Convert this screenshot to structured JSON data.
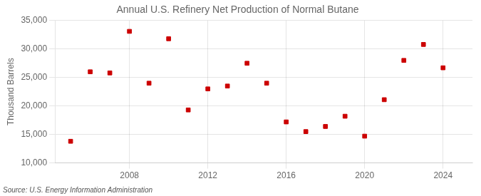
{
  "chart_data": {
    "type": "scatter",
    "title": "Annual U.S. Refinery Net Production of Normal Butane",
    "ylabel": "Thousand Barrels",
    "source": "Source: U.S. Energy Information Administration",
    "x": [
      2005,
      2006,
      2007,
      2008,
      2009,
      2010,
      2011,
      2012,
      2013,
      2014,
      2015,
      2016,
      2017,
      2018,
      2019,
      2020,
      2021,
      2022,
      2023,
      2024
    ],
    "values": [
      13800,
      26000,
      25800,
      33100,
      24000,
      31800,
      19300,
      23000,
      23500,
      27500,
      24000,
      17200,
      15500,
      16400,
      18200,
      14700,
      21100,
      28000,
      30800,
      26700
    ],
    "color": "#cc0000",
    "marker": "square",
    "xlim": [
      2004.2,
      2025.5
    ],
    "xticks": [
      2008,
      2012,
      2016,
      2020,
      2024
    ],
    "ylim": [
      10000,
      35000
    ],
    "yticks": [
      {
        "value": 10000,
        "label": "10,000"
      },
      {
        "value": 15000,
        "label": "15,000"
      },
      {
        "value": 20000,
        "label": "20,000"
      },
      {
        "value": 25000,
        "label": "25,000"
      },
      {
        "value": 30000,
        "label": "30,000"
      },
      {
        "value": 35000,
        "label": "35,000"
      }
    ],
    "grid": true
  }
}
